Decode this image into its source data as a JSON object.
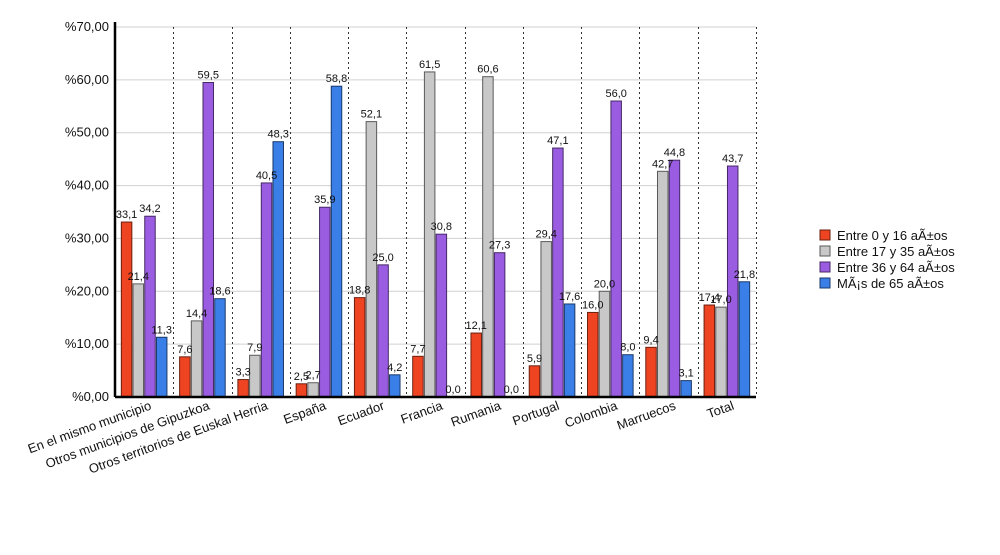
{
  "chart_data": {
    "type": "bar",
    "categories": [
      "En el mismo municipio",
      "Otros municipios de Gipuzkoa",
      "Otros territorios de Euskal Herria",
      "España",
      "Ecuador",
      "Francia",
      "Rumania",
      "Portugal",
      "Colombia",
      "Marruecos",
      "Total"
    ],
    "series": [
      {
        "name": "Entre 0 y 16 aÃ±os",
        "color": "#ee4422",
        "values": [
          33.1,
          7.6,
          3.3,
          2.5,
          18.8,
          7.7,
          12.1,
          5.9,
          16.0,
          9.4,
          17.4
        ],
        "labels": [
          "33,1",
          "7,6",
          "3,3",
          "2,5",
          "18,8",
          "7,7",
          "12,1",
          "5,9",
          "16,0",
          "9,4",
          "17,4"
        ]
      },
      {
        "name": "Entre 17 y 35 aÃ±os",
        "color": "#c8c8c8",
        "values": [
          21.4,
          14.4,
          7.9,
          2.7,
          52.1,
          61.5,
          60.6,
          29.4,
          20.0,
          42.7,
          17.0
        ],
        "labels": [
          "21,4",
          "14,4",
          "7,9",
          "2,7",
          "52,1",
          "61,5",
          "60,6",
          "29,4",
          "20,0",
          "42,7",
          "17,0"
        ]
      },
      {
        "name": "Entre 36 y 64 aÃ±os",
        "color": "#9a5ce0",
        "values": [
          34.2,
          59.5,
          40.5,
          35.9,
          25.0,
          30.8,
          27.3,
          47.1,
          56.0,
          44.8,
          43.7
        ],
        "labels": [
          "34,2",
          "59,5",
          "40,5",
          "35,9",
          "25,0",
          "30,8",
          "27,3",
          "47,1",
          "56,0",
          "44,8",
          "43,7"
        ]
      },
      {
        "name": "MÃ¡s de 65 aÃ±os",
        "color": "#3a7ee8",
        "values": [
          11.3,
          18.6,
          48.3,
          58.8,
          4.2,
          0.0,
          0.0,
          17.6,
          8.0,
          3.1,
          21.8
        ],
        "labels": [
          "11,3",
          "18,6",
          "48,3",
          "58,8",
          "4,2",
          "0,0",
          "0,0",
          "17,6",
          "8,0",
          "3,1",
          "21,8"
        ]
      }
    ],
    "ylim": [
      0,
      70
    ],
    "yticks": [
      0,
      10,
      20,
      30,
      40,
      50,
      60,
      70
    ],
    "ytick_labels": [
      "%0,00",
      "%10,00",
      "%20,00",
      "%30,00",
      "%40,00",
      "%50,00",
      "%60,00",
      "%70,00"
    ],
    "grid": true,
    "legend_position": "right"
  }
}
